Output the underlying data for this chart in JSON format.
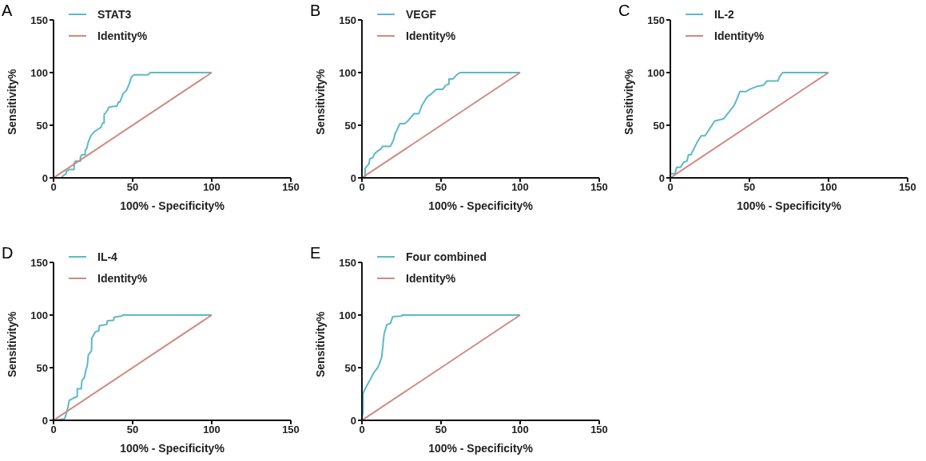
{
  "chart_data": [
    {
      "type": "line",
      "title": "A",
      "xlabel": "100% - Specificity%",
      "ylabel": "Sensitivity%",
      "xlim": [
        0,
        150
      ],
      "xticks": [
        0,
        50,
        100,
        150
      ],
      "ylim": [
        0,
        150
      ],
      "yticks": [
        0,
        50,
        100,
        150
      ],
      "grid": false,
      "legend": "top left",
      "marker": "none",
      "line_style": "solid",
      "series": [
        {
          "name": "STAT3",
          "color": "#5bbac6",
          "x": [
            5,
            6,
            8,
            8,
            10,
            13,
            13,
            14,
            17,
            17,
            18,
            20,
            20,
            21,
            22,
            23,
            24,
            26,
            28,
            30,
            31,
            32,
            32,
            34,
            35,
            38,
            40,
            41,
            42,
            43,
            44,
            46,
            47,
            48,
            49,
            50,
            51,
            60,
            61,
            100
          ],
          "values": [
            0,
            2,
            4,
            6,
            8,
            8,
            14,
            16,
            16,
            20,
            22,
            22,
            26,
            28,
            34,
            38,
            41,
            44,
            46,
            48,
            52,
            52,
            60,
            64,
            67,
            68,
            68,
            72,
            72,
            76,
            80,
            83,
            86,
            90,
            95,
            97,
            98,
            98,
            100,
            100
          ]
        },
        {
          "name": "Identity%",
          "color": "#d08a80",
          "x": [
            0,
            100
          ],
          "values": [
            0,
            100
          ]
        }
      ]
    },
    {
      "type": "line",
      "title": "B",
      "xlabel": "100% - Specificity%",
      "ylabel": "Sensitivity%",
      "xlim": [
        0,
        150
      ],
      "xticks": [
        0,
        50,
        100,
        150
      ],
      "ylim": [
        0,
        150
      ],
      "yticks": [
        0,
        50,
        100,
        150
      ],
      "grid": false,
      "legend": "top left",
      "marker": "none",
      "line_style": "solid",
      "series": [
        {
          "name": "VEGF",
          "color": "#5bbac6",
          "x": [
            0,
            2,
            2,
            3.4,
            4.4,
            5,
            6.8,
            8,
            10,
            12,
            13,
            18,
            20,
            21,
            22,
            24,
            27,
            29,
            33,
            36,
            38,
            41,
            44,
            47,
            51,
            53,
            55,
            55,
            57.6,
            60,
            62,
            100
          ],
          "values": [
            0,
            1,
            9,
            11.5,
            13,
            18,
            19,
            23,
            25.5,
            27.5,
            30,
            30,
            36,
            42,
            45,
            51.5,
            51.5,
            54,
            61,
            61,
            69,
            76.5,
            80,
            84,
            84,
            88,
            89,
            94,
            94,
            98,
            100,
            100
          ]
        },
        {
          "name": "Identity%",
          "color": "#d08a80",
          "x": [
            0,
            100
          ],
          "values": [
            0,
            100
          ]
        }
      ]
    },
    {
      "type": "line",
      "title": "C",
      "xlabel": "100% - Specificity%",
      "ylabel": "Sensitivity%",
      "xlim": [
        0,
        150
      ],
      "xticks": [
        0,
        50,
        100,
        150
      ],
      "ylim": [
        0,
        150
      ],
      "yticks": [
        0,
        50,
        100,
        150
      ],
      "grid": false,
      "legend": "top left",
      "marker": "none",
      "line_style": "solid",
      "series": [
        {
          "name": "IL-2",
          "color": "#5bbac6",
          "x": [
            0,
            0,
            3,
            4,
            6.4,
            8.5,
            10.5,
            11.5,
            13,
            17,
            19.5,
            22,
            28,
            33.6,
            40,
            41,
            44,
            48,
            50,
            55,
            59,
            61,
            68,
            69,
            71,
            100
          ],
          "values": [
            0,
            4,
            4,
            10,
            10,
            15,
            16,
            22,
            22,
            34,
            40,
            40,
            54,
            56,
            68,
            71,
            82,
            82,
            84,
            87,
            88,
            92,
            92,
            96,
            100,
            100
          ]
        },
        {
          "name": "Identity%",
          "color": "#d08a80",
          "x": [
            0,
            100
          ],
          "values": [
            0,
            100
          ]
        }
      ]
    },
    {
      "type": "line",
      "title": "D",
      "xlabel": "100% - Specificity%",
      "ylabel": "Sensitivity%",
      "xlim": [
        0,
        150
      ],
      "xticks": [
        0,
        50,
        100,
        150
      ],
      "ylim": [
        0,
        150
      ],
      "yticks": [
        0,
        50,
        100,
        150
      ],
      "grid": false,
      "legend": "top left",
      "marker": "none",
      "line_style": "solid",
      "series": [
        {
          "name": "IL-4",
          "color": "#5bbac6",
          "x": [
            0,
            7,
            7.8,
            9,
            10,
            12.4,
            15,
            15,
            17.5,
            18,
            19.5,
            20.5,
            21.3,
            22,
            24,
            24.2,
            26.5,
            28.5,
            29,
            33.6,
            34,
            38,
            38.3,
            43,
            44,
            100
          ],
          "values": [
            0,
            1.5,
            5,
            12,
            19,
            21,
            22.5,
            30,
            30,
            38,
            40.5,
            48,
            51.5,
            62,
            66,
            78,
            84,
            85,
            90,
            91,
            94.5,
            95,
            98,
            99,
            100,
            100
          ]
        },
        {
          "name": "Identity%",
          "color": "#d08a80",
          "x": [
            0,
            100
          ],
          "values": [
            0,
            100
          ]
        }
      ]
    },
    {
      "type": "line",
      "title": "E",
      "xlabel": "100% - Specificity%",
      "ylabel": "Sensitivity%",
      "xlim": [
        0,
        150
      ],
      "xticks": [
        0,
        50,
        100,
        150
      ],
      "ylim": [
        0,
        150
      ],
      "yticks": [
        0,
        50,
        100,
        150
      ],
      "grid": false,
      "legend": "top left",
      "marker": "none",
      "line_style": "solid",
      "series": [
        {
          "name": "Four combined",
          "color": "#5bbac6",
          "x": [
            0,
            0.7,
            0.7,
            1.7,
            3,
            5,
            7.8,
            10,
            11,
            12.5,
            13,
            14,
            15.8,
            18,
            19.5,
            25,
            25.4,
            100
          ],
          "values": [
            0,
            8,
            25,
            29,
            32.6,
            38,
            46,
            50,
            53.5,
            60,
            67,
            82,
            91,
            92,
            98.5,
            99,
            100,
            100
          ]
        },
        {
          "name": "Identity%",
          "color": "#d08a80",
          "x": [
            0,
            100
          ],
          "values": [
            0,
            100
          ]
        }
      ]
    }
  ]
}
